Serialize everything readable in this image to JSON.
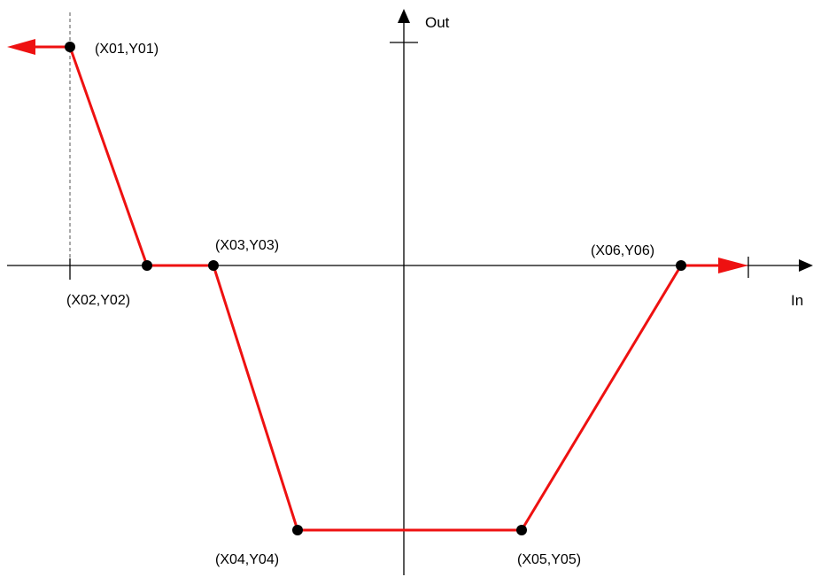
{
  "axes": {
    "x_label": "In",
    "y_label": "Out"
  },
  "curve": {
    "color": "#ee1111",
    "points": [
      {
        "label": "(X01,Y01)"
      },
      {
        "label": "(X02,Y02)"
      },
      {
        "label": "(X03,Y03)"
      },
      {
        "label": "(X04,Y04)"
      },
      {
        "label": "(X05,Y05)"
      },
      {
        "label": "(X06,Y06)"
      }
    ]
  },
  "colors": {
    "axis": "#000000",
    "curve": "#ee1111",
    "point": "#000000"
  }
}
